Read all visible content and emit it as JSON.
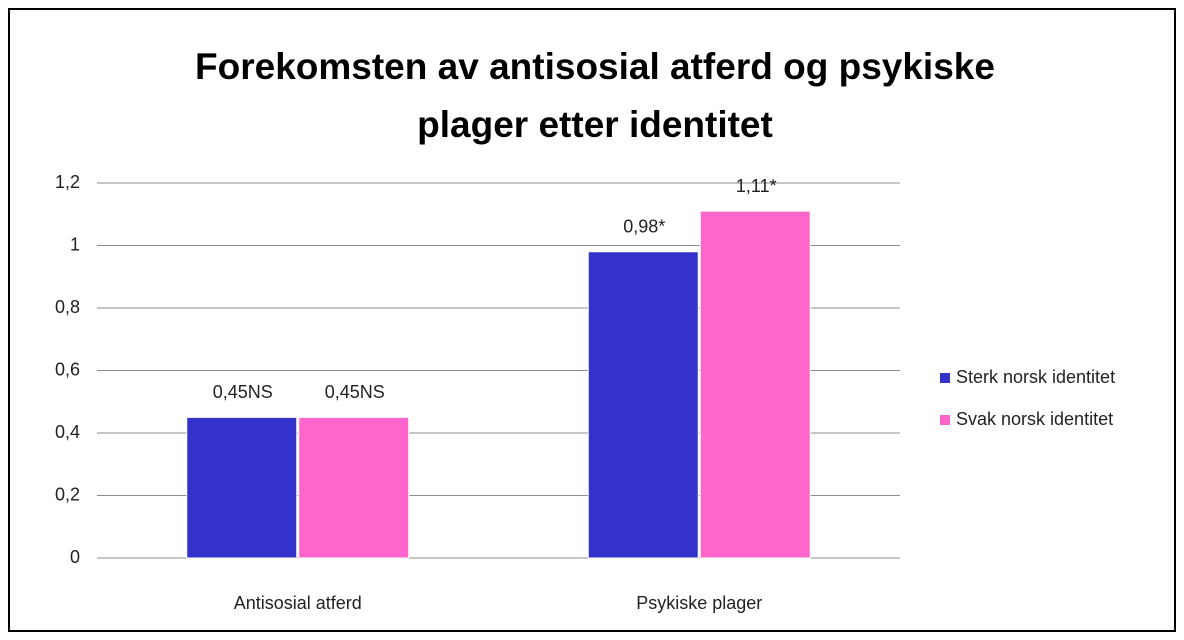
{
  "chart_data": {
    "type": "bar",
    "title": "Forekomsten av antisosial atferd og psykiske plager etter identitet",
    "categories": [
      "Antisosial atferd",
      "Psykiske plager"
    ],
    "series": [
      {
        "name": "Sterk norsk identitet",
        "color": "#3333cc",
        "values": [
          0.45,
          0.98
        ],
        "value_labels": [
          "0,45NS",
          "0,98*"
        ]
      },
      {
        "name": "Svak norsk identitet",
        "color": "#ff66cc",
        "values": [
          0.45,
          1.11
        ],
        "value_labels": [
          "0,45NS",
          "1,11*"
        ]
      }
    ],
    "ylim": [
      0,
      1.2
    ],
    "yticks": [
      0,
      {
        "value": 0.2,
        "label": "0,2"
      },
      {
        "value": 0.4,
        "label": "0,4"
      },
      {
        "value": 0.6,
        "label": "0,6"
      },
      {
        "value": 0.8,
        "label": "0,8"
      },
      1,
      {
        "value": 1.2,
        "label": "1,2"
      }
    ],
    "grid": true,
    "legend": "right"
  }
}
